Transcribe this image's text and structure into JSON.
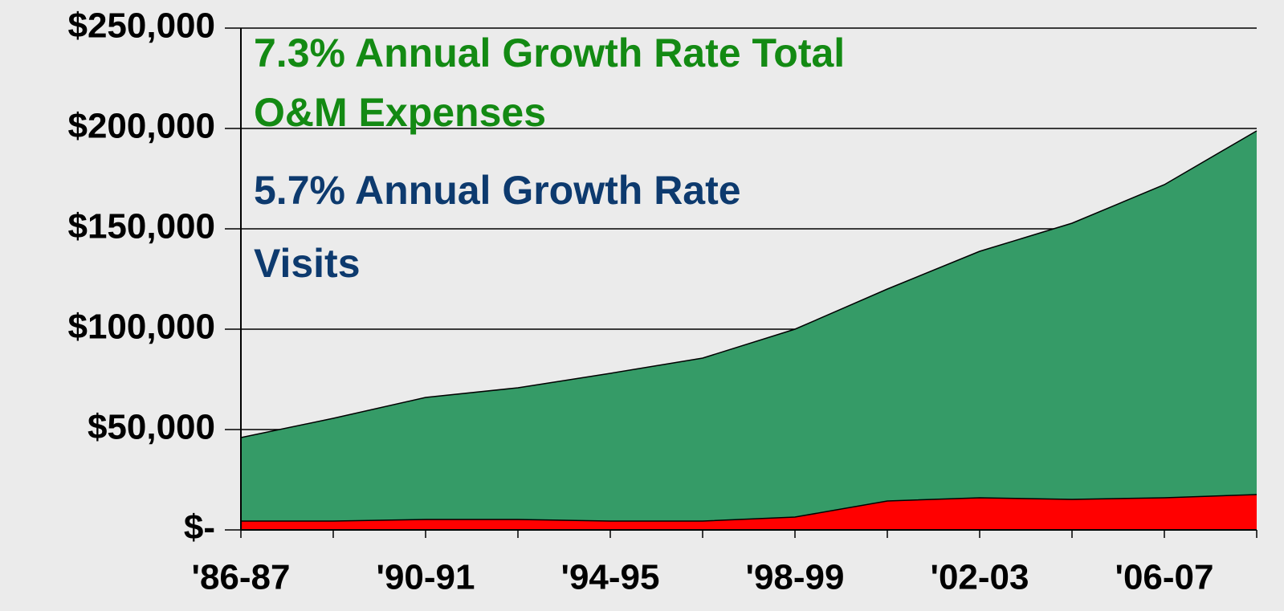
{
  "chart_data": {
    "type": "area",
    "categories": [
      "'86-87",
      null,
      "'90-91",
      null,
      "'94-95",
      null,
      "'98-99",
      null,
      "'02-03",
      null,
      "'06-07",
      null
    ],
    "series": [
      {
        "color": "#359b67",
        "values": [
          46000,
          55600,
          66000,
          70800,
          78000,
          85600,
          100000,
          120000,
          138800,
          152800,
          172000,
          198800
        ]
      },
      {
        "color": "#ff0000",
        "values": [
          4400,
          4400,
          5200,
          5200,
          4400,
          4400,
          6400,
          14400,
          16000,
          15200,
          16000,
          17600
        ]
      }
    ],
    "ylim": [
      0,
      250000
    ],
    "yticks": [
      {
        "value": 0,
        "label": "$-"
      },
      {
        "value": 50000,
        "label": "$50,000"
      },
      {
        "value": 100000,
        "label": "$100,000"
      },
      {
        "value": 150000,
        "label": "$150,000"
      },
      {
        "value": 200000,
        "label": "$200,000"
      },
      {
        "value": 250000,
        "label": "$250,000"
      }
    ],
    "grid": true,
    "annotations": [
      {
        "lines": [
          "7.3%  Annual Growth Rate Total",
          "O&M Expenses"
        ],
        "color": "#138a13"
      },
      {
        "lines": [
          "5.7% Annual Growth Rate",
          "Visits"
        ],
        "color": "#0d3a6e"
      }
    ]
  }
}
